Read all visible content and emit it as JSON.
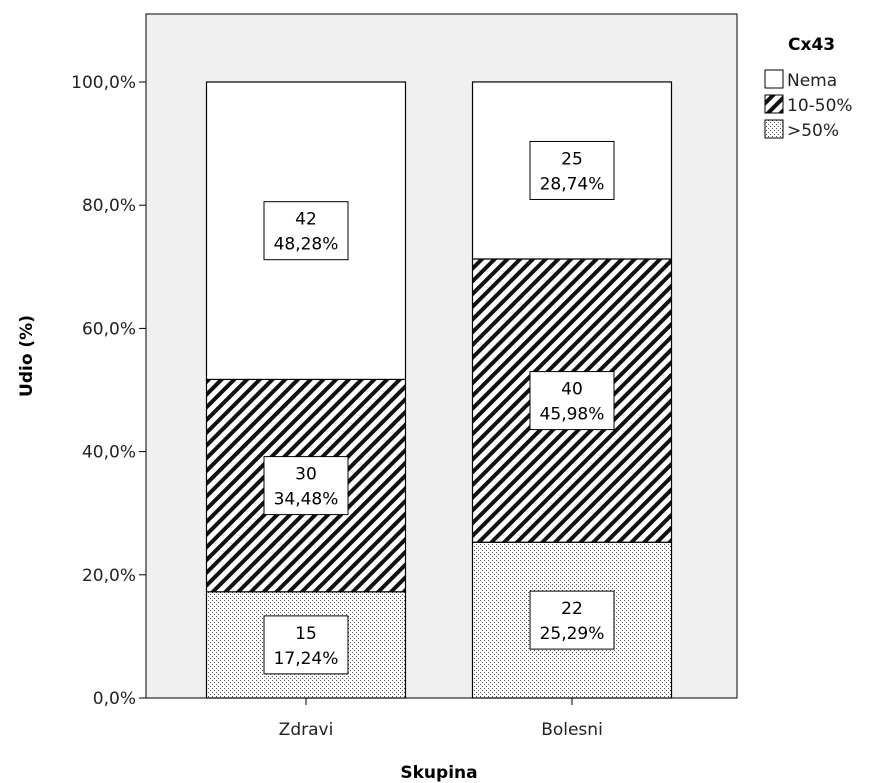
{
  "chart_data": {
    "type": "bar",
    "stacked": true,
    "percent": true,
    "categories": [
      "Zdravi",
      "Bolesni"
    ],
    "series": [
      {
        "name": ">50%",
        "counts": [
          15,
          22
        ],
        "values": [
          17.24,
          25.29
        ],
        "labels": [
          "17,24%",
          "25,29%"
        ],
        "pattern": "dots"
      },
      {
        "name": "10-50%",
        "counts": [
          30,
          40
        ],
        "values": [
          34.48,
          45.98
        ],
        "labels": [
          "34,48%",
          "45,98%"
        ],
        "pattern": "hatch"
      },
      {
        "name": "Nema",
        "counts": [
          42,
          25
        ],
        "values": [
          48.28,
          28.74
        ],
        "labels": [
          "48,28%",
          "28,74%"
        ],
        "pattern": "empty"
      }
    ],
    "xlabel": "Skupina",
    "ylabel": "Udio (%)",
    "ylim": [
      0,
      100
    ],
    "yticks": [
      "0,0%",
      "20,0%",
      "40,0%",
      "60,0%",
      "80,0%",
      "100,0%"
    ],
    "legend": {
      "title": "Cx43",
      "position": "top-right",
      "order": [
        "Nema",
        "10-50%",
        ">50%"
      ]
    },
    "grid": false,
    "colors": {
      "plot_background": "#f0f0f0",
      "bar_fill": "#ffffff",
      "stroke": "#000000"
    }
  }
}
